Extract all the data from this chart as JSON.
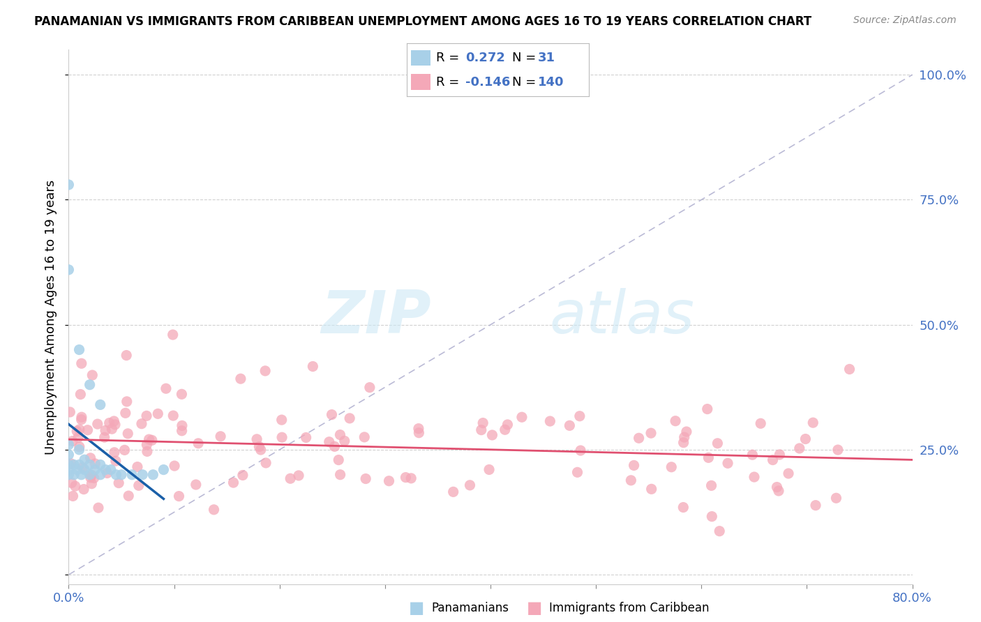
{
  "title": "PANAMANIAN VS IMMIGRANTS FROM CARIBBEAN UNEMPLOYMENT AMONG AGES 16 TO 19 YEARS CORRELATION CHART",
  "source": "Source: ZipAtlas.com",
  "ylabel": "Unemployment Among Ages 16 to 19 years",
  "xlim": [
    0.0,
    0.8
  ],
  "ylim": [
    -0.02,
    1.05
  ],
  "panama_R": 0.272,
  "panama_N": 31,
  "carib_R": -0.146,
  "carib_N": 140,
  "panama_color": "#a8d0e8",
  "carib_color": "#f4a8b8",
  "panama_trend_color": "#1a5fa8",
  "carib_trend_color": "#e05070",
  "diagonal_color": "#aaaacc",
  "background_color": "#ffffff",
  "grid_color": "#cccccc",
  "tick_color": "#4472c4",
  "title_fontsize": 12,
  "axis_fontsize": 13,
  "legend_fontsize": 13
}
